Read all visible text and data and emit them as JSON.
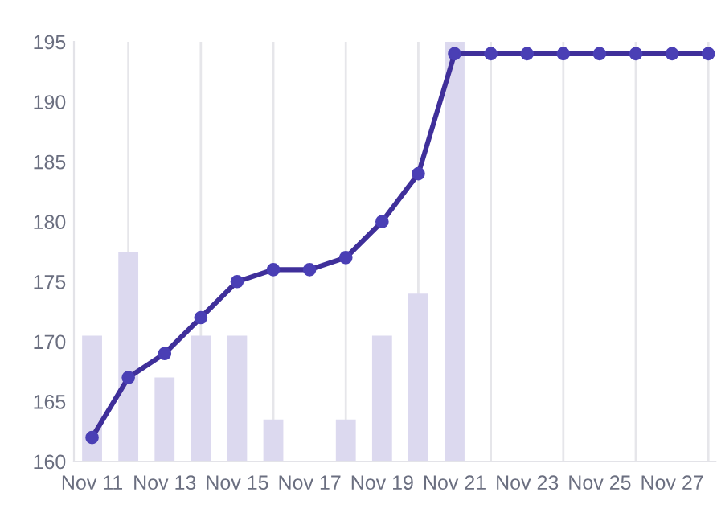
{
  "chart_data": {
    "type": "line",
    "categories": [
      "Nov 11",
      null,
      "Nov 13",
      null,
      "Nov 15",
      null,
      "Nov 17",
      null,
      "Nov 19",
      null,
      "Nov 21",
      null,
      "Nov 23",
      null,
      "Nov 25",
      null,
      "Nov 27",
      null
    ],
    "series": [
      {
        "type": "bar",
        "color": "#dcd9ef",
        "values": [
          170.5,
          177.5,
          167,
          170.5,
          170.5,
          163.5,
          null,
          163.5,
          170.5,
          174,
          195,
          null,
          null,
          null,
          null,
          null,
          null,
          null
        ]
      },
      {
        "color": "#3f2f9a",
        "values": [
          162,
          167,
          169,
          172,
          175,
          176,
          176,
          177,
          180,
          184,
          194,
          194,
          194,
          194,
          194,
          194,
          194,
          194
        ]
      }
    ],
    "ylim": [
      160,
      195
    ],
    "yticks": [
      160,
      165,
      170,
      175,
      180,
      185,
      190,
      195
    ],
    "grid": "x",
    "marker": "circle",
    "line_style": "solid"
  }
}
